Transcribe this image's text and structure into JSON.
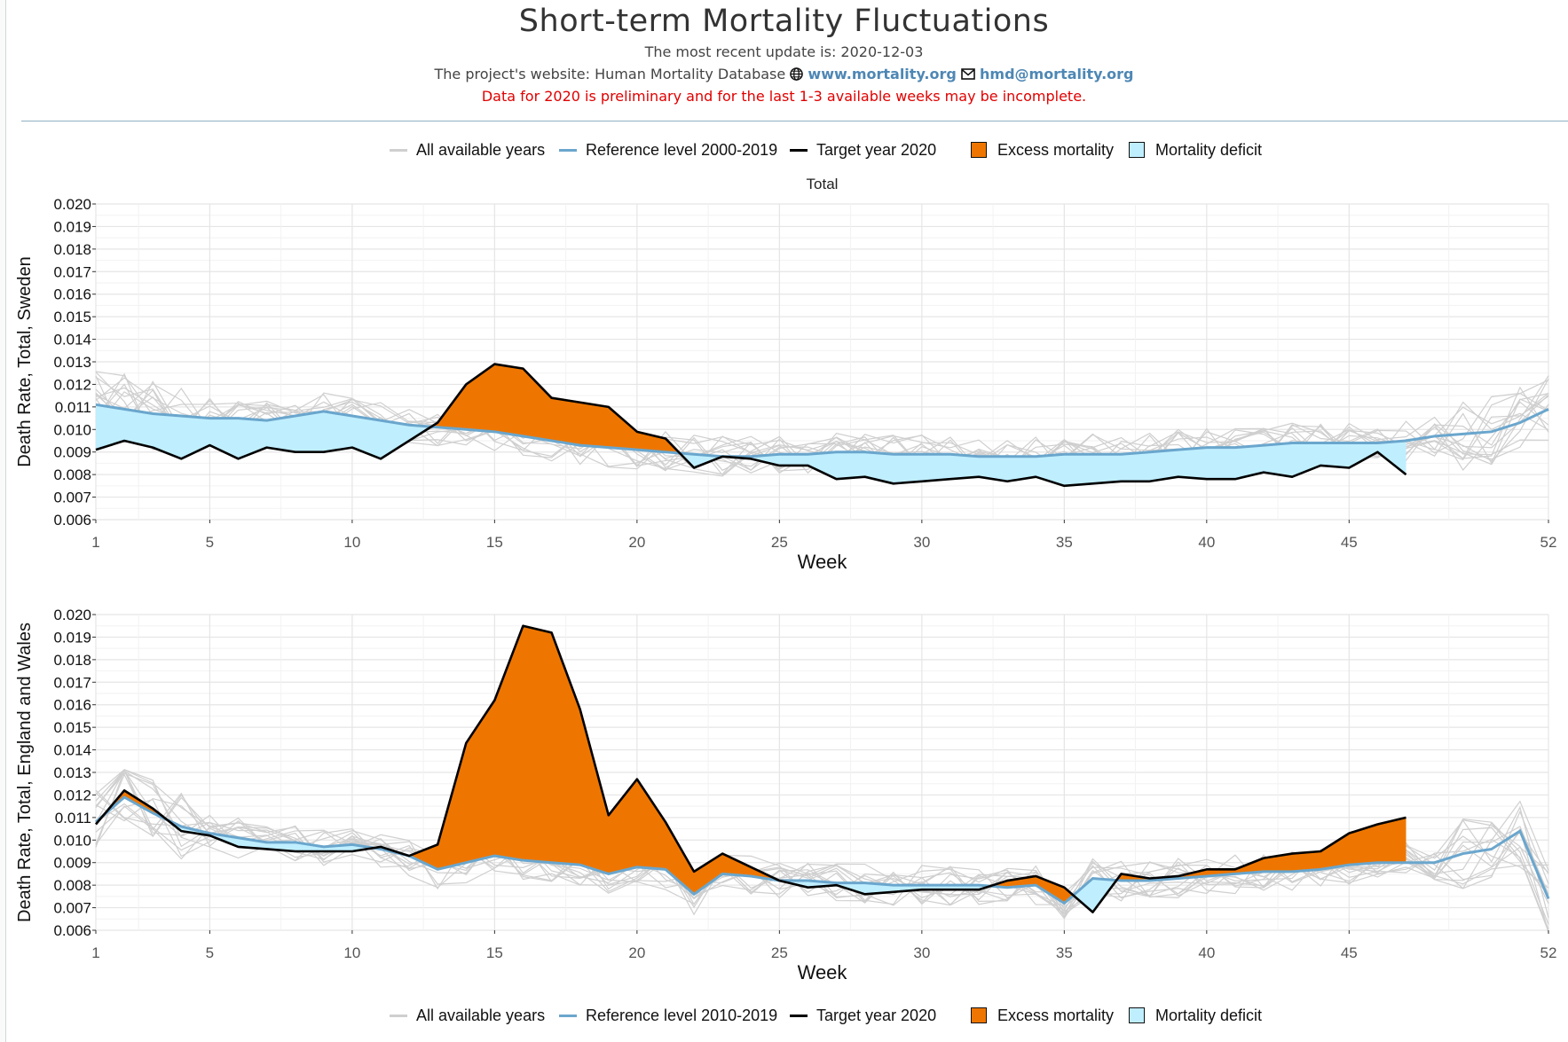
{
  "header": {
    "title": "Short-term Mortality Fluctuations",
    "update": "The most recent update is: 2020-12-03",
    "website_prefix": "The project's website: Human Mortality Database",
    "website_link": "www.mortality.org",
    "email_link": "hmd@mortality.org",
    "warning": "Data for 2020 is preliminary and for the last 1-3 available weeks may be incomplete."
  },
  "colors": {
    "all_years": "#cfcfcf",
    "reference": "#6aa6cd",
    "target": "#000000",
    "excess": "#ee7600",
    "deficit": "#bfeeff"
  },
  "legend_top": {
    "all_years": "All available years",
    "reference": "Reference level 2000-2019",
    "target": "Target year 2020",
    "excess": "Excess mortality",
    "deficit": "Mortality deficit"
  },
  "legend_bottom": {
    "all_years": "All available years",
    "reference": "Reference level 2010-2019",
    "target": "Target year 2020",
    "excess": "Excess mortality",
    "deficit": "Mortality deficit"
  },
  "chart_data": [
    {
      "type": "line",
      "strip_title": "Total",
      "xlabel": "Week",
      "ylabel": "Death Rate, Total, Sweden",
      "xlim": [
        1,
        52
      ],
      "ylim": [
        0.006,
        0.02
      ],
      "xticks": [
        1,
        5,
        10,
        15,
        20,
        25,
        30,
        35,
        40,
        45,
        52
      ],
      "yticks": [
        "0.006",
        "0.007",
        "0.008",
        "0.009",
        "0.010",
        "0.011",
        "0.012",
        "0.013",
        "0.014",
        "0.015",
        "0.016",
        "0.017",
        "0.018",
        "0.019",
        "0.020"
      ],
      "grid": true,
      "series": [
        {
          "name": "Reference level 2000-2019",
          "x": [
            1,
            2,
            3,
            4,
            5,
            6,
            7,
            8,
            9,
            10,
            11,
            12,
            13,
            14,
            15,
            16,
            17,
            18,
            19,
            20,
            21,
            22,
            23,
            24,
            25,
            26,
            27,
            28,
            29,
            30,
            31,
            32,
            33,
            34,
            35,
            36,
            37,
            38,
            39,
            40,
            41,
            42,
            43,
            44,
            45,
            46,
            47,
            48,
            49,
            50,
            51,
            52
          ],
          "values": [
            0.0111,
            0.0109,
            0.0107,
            0.0106,
            0.0105,
            0.0105,
            0.0104,
            0.0106,
            0.0108,
            0.0106,
            0.0104,
            0.0102,
            0.0101,
            0.01,
            0.0099,
            0.0097,
            0.0095,
            0.0093,
            0.0092,
            0.0091,
            0.009,
            0.0089,
            0.0088,
            0.0088,
            0.0089,
            0.0089,
            0.009,
            0.009,
            0.0089,
            0.0089,
            0.0089,
            0.0088,
            0.0088,
            0.0088,
            0.0089,
            0.0089,
            0.0089,
            0.009,
            0.0091,
            0.0092,
            0.0092,
            0.0093,
            0.0094,
            0.0094,
            0.0094,
            0.0094,
            0.0095,
            0.0097,
            0.0098,
            0.0099,
            0.0103,
            0.0109
          ]
        },
        {
          "name": "Target year 2020",
          "x": [
            1,
            2,
            3,
            4,
            5,
            6,
            7,
            8,
            9,
            10,
            11,
            12,
            13,
            14,
            15,
            16,
            17,
            18,
            19,
            20,
            21,
            22,
            23,
            24,
            25,
            26,
            27,
            28,
            29,
            30,
            31,
            32,
            33,
            34,
            35,
            36,
            37,
            38,
            39,
            40,
            41,
            42,
            43,
            44,
            45,
            46,
            47
          ],
          "values": [
            0.0091,
            0.0095,
            0.0092,
            0.0087,
            0.0093,
            0.0087,
            0.0092,
            0.009,
            0.009,
            0.0092,
            0.0087,
            0.0095,
            0.0103,
            0.012,
            0.0129,
            0.0127,
            0.0114,
            0.0112,
            0.011,
            0.0099,
            0.0096,
            0.0083,
            0.0088,
            0.0087,
            0.0084,
            0.0084,
            0.0078,
            0.0079,
            0.0076,
            0.0077,
            0.0078,
            0.0079,
            0.0077,
            0.0079,
            0.0075,
            0.0076,
            0.0077,
            0.0077,
            0.0079,
            0.0078,
            0.0078,
            0.0081,
            0.0079,
            0.0084,
            0.0083,
            0.009,
            0.008
          ]
        }
      ]
    },
    {
      "type": "line",
      "strip_title": "",
      "xlabel": "Week",
      "ylabel": "Death Rate, Total, England and Wales",
      "xlim": [
        1,
        52
      ],
      "ylim": [
        0.006,
        0.02
      ],
      "xticks": [
        1,
        5,
        10,
        15,
        20,
        25,
        30,
        35,
        40,
        45,
        52
      ],
      "yticks": [
        "0.006",
        "0.007",
        "0.008",
        "0.009",
        "0.010",
        "0.011",
        "0.012",
        "0.013",
        "0.014",
        "0.015",
        "0.016",
        "0.017",
        "0.018",
        "0.019",
        "0.020"
      ],
      "grid": true,
      "series": [
        {
          "name": "Reference level 2010-2019",
          "x": [
            1,
            2,
            3,
            4,
            5,
            6,
            7,
            8,
            9,
            10,
            11,
            12,
            13,
            14,
            15,
            16,
            17,
            18,
            19,
            20,
            21,
            22,
            23,
            24,
            25,
            26,
            27,
            28,
            29,
            30,
            31,
            32,
            33,
            34,
            35,
            36,
            37,
            38,
            39,
            40,
            41,
            42,
            43,
            44,
            45,
            46,
            47,
            48,
            49,
            50,
            51,
            52
          ],
          "values": [
            0.0108,
            0.0119,
            0.0112,
            0.0106,
            0.0103,
            0.0101,
            0.0099,
            0.0099,
            0.0097,
            0.0098,
            0.0096,
            0.0093,
            0.0087,
            0.009,
            0.0093,
            0.0091,
            0.009,
            0.0089,
            0.0085,
            0.0088,
            0.0087,
            0.0076,
            0.0085,
            0.0084,
            0.0082,
            0.0082,
            0.0081,
            0.0081,
            0.008,
            0.008,
            0.008,
            0.008,
            0.0079,
            0.008,
            0.0072,
            0.0083,
            0.0082,
            0.0082,
            0.0083,
            0.0084,
            0.0085,
            0.0086,
            0.0086,
            0.0087,
            0.0089,
            0.009,
            0.009,
            0.009,
            0.0094,
            0.0096,
            0.0104,
            0.0074
          ]
        },
        {
          "name": "Target year 2020",
          "x": [
            1,
            2,
            3,
            4,
            5,
            6,
            7,
            8,
            9,
            10,
            11,
            12,
            13,
            14,
            15,
            16,
            17,
            18,
            19,
            20,
            21,
            22,
            23,
            24,
            25,
            26,
            27,
            28,
            29,
            30,
            31,
            32,
            33,
            34,
            35,
            36,
            37,
            38,
            39,
            40,
            41,
            42,
            43,
            44,
            45,
            46,
            47
          ],
          "values": [
            0.0107,
            0.0122,
            0.0114,
            0.0104,
            0.0102,
            0.0097,
            0.0096,
            0.0095,
            0.0095,
            0.0095,
            0.0097,
            0.0093,
            0.0098,
            0.0143,
            0.0162,
            0.0195,
            0.0192,
            0.0158,
            0.0111,
            0.0127,
            0.0108,
            0.0086,
            0.0094,
            0.0088,
            0.0082,
            0.0079,
            0.008,
            0.0076,
            0.0077,
            0.0078,
            0.0078,
            0.0078,
            0.0082,
            0.0084,
            0.0079,
            0.0068,
            0.0085,
            0.0083,
            0.0084,
            0.0087,
            0.0087,
            0.0092,
            0.0094,
            0.0095,
            0.0103,
            0.0107,
            0.011
          ]
        }
      ]
    }
  ]
}
